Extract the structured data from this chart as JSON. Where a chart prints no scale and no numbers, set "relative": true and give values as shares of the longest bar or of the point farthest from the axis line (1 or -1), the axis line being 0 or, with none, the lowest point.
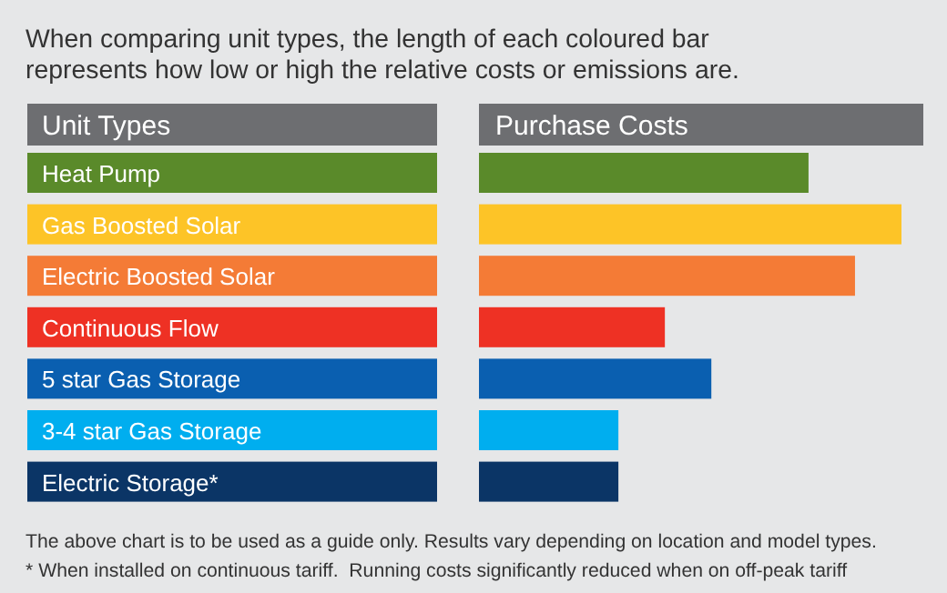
{
  "chart_data": {
    "type": "bar",
    "orientation": "horizontal",
    "relative": true,
    "title": "When comparing unit types, the length of each coloured bar represents how low or high the relative costs or emissions are.",
    "ylabel": "Unit Types",
    "xlabel": "Purchase Costs",
    "categories": [
      "Heat Pump",
      "Gas Boosted Solar",
      "Electric Boosted Solar",
      "Continuous Flow",
      "5 star Gas Storage",
      "3-4 star Gas Storage",
      "Electric Storage*"
    ],
    "values": [
      0.78,
      1,
      0.89,
      0.44,
      0.55,
      0.33,
      0.33
    ],
    "colors": [
      "#5a8a2a",
      "#fdc427",
      "#f47b36",
      "#ee3124",
      "#0a5fb0",
      "#00aeef",
      "#0b3566"
    ],
    "annotations": [
      "The above chart is to be used as a guide only. Results vary depending on location and model types.",
      "* When installed on continuous tariff.  Running costs significantly reduced when on off-peak tariff"
    ]
  }
}
